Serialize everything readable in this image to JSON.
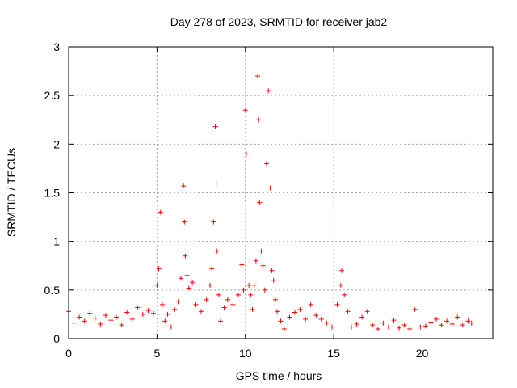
{
  "chart_data": {
    "type": "scatter",
    "title": "Day 278 of 2023, SRMTID for receiver jab2",
    "xlabel": "GPS time / hours",
    "ylabel": "SRMTID / TECUs",
    "xlim": [
      0,
      24
    ],
    "ylim": [
      0,
      3
    ],
    "x_ticks": [
      0,
      5,
      10,
      15,
      20
    ],
    "x_tick_labels": [
      "0",
      "5",
      "10",
      "15",
      "20"
    ],
    "y_ticks": [
      0,
      0.5,
      1,
      1.5,
      2,
      2.5,
      3
    ],
    "y_tick_labels": [
      "0",
      "0.5",
      "1",
      "1.5",
      "2",
      "2.5",
      "3"
    ],
    "grid": true,
    "marker": "+",
    "color": "#ff0000",
    "series": [
      {
        "name": "jab2",
        "x": [
          0.0,
          0.3,
          0.6,
          0.9,
          1.2,
          1.5,
          1.8,
          2.1,
          2.4,
          2.7,
          3.0,
          3.3,
          3.6,
          3.9,
          4.2,
          4.5,
          4.8,
          5.0,
          5.1,
          5.2,
          5.3,
          5.45,
          5.6,
          5.8,
          6.0,
          6.2,
          6.35,
          6.5,
          6.55,
          6.6,
          6.7,
          6.8,
          7.0,
          7.2,
          7.5,
          7.8,
          8.0,
          8.1,
          8.2,
          8.3,
          8.35,
          8.4,
          8.5,
          8.6,
          8.8,
          9.0,
          9.3,
          9.6,
          9.8,
          9.9,
          10.0,
          10.05,
          10.2,
          10.3,
          10.4,
          10.5,
          10.6,
          10.7,
          10.75,
          10.8,
          10.9,
          11.0,
          11.1,
          11.2,
          11.3,
          11.4,
          11.5,
          11.6,
          11.7,
          11.8,
          12.0,
          12.2,
          12.5,
          12.8,
          13.1,
          13.4,
          13.7,
          14.0,
          14.3,
          14.6,
          14.9,
          15.2,
          15.4,
          15.45,
          15.6,
          15.8,
          16.0,
          16.3,
          16.6,
          16.9,
          17.2,
          17.5,
          17.8,
          18.1,
          18.4,
          18.7,
          19.0,
          19.3,
          19.6,
          19.9,
          20.2,
          20.5,
          20.8,
          21.1,
          21.4,
          21.7,
          22.0,
          22.3,
          22.6,
          22.8
        ],
        "y": [
          0.28,
          0.16,
          0.22,
          0.18,
          0.26,
          0.21,
          0.15,
          0.24,
          0.19,
          0.22,
          0.14,
          0.27,
          0.2,
          0.32,
          0.25,
          0.29,
          0.26,
          0.55,
          0.72,
          1.3,
          0.35,
          0.18,
          0.25,
          0.12,
          0.3,
          0.38,
          0.62,
          1.57,
          1.2,
          0.85,
          0.65,
          0.52,
          0.58,
          0.35,
          0.28,
          0.4,
          0.55,
          0.72,
          1.2,
          2.18,
          1.6,
          0.9,
          0.45,
          0.18,
          0.32,
          0.4,
          0.35,
          0.45,
          0.76,
          0.5,
          2.35,
          1.9,
          0.55,
          0.45,
          0.3,
          0.55,
          0.8,
          2.7,
          2.25,
          1.4,
          0.9,
          0.75,
          0.5,
          1.8,
          2.55,
          1.55,
          0.7,
          0.6,
          0.4,
          0.28,
          0.18,
          0.1,
          0.22,
          0.27,
          0.3,
          0.2,
          0.35,
          0.24,
          0.2,
          0.16,
          0.12,
          0.35,
          0.55,
          0.7,
          0.45,
          0.28,
          0.12,
          0.15,
          0.22,
          0.28,
          0.14,
          0.1,
          0.16,
          0.12,
          0.19,
          0.11,
          0.14,
          0.1,
          0.3,
          0.12,
          0.13,
          0.17,
          0.2,
          0.14,
          0.18,
          0.15,
          0.22,
          0.14,
          0.18,
          0.16
        ]
      }
    ]
  }
}
